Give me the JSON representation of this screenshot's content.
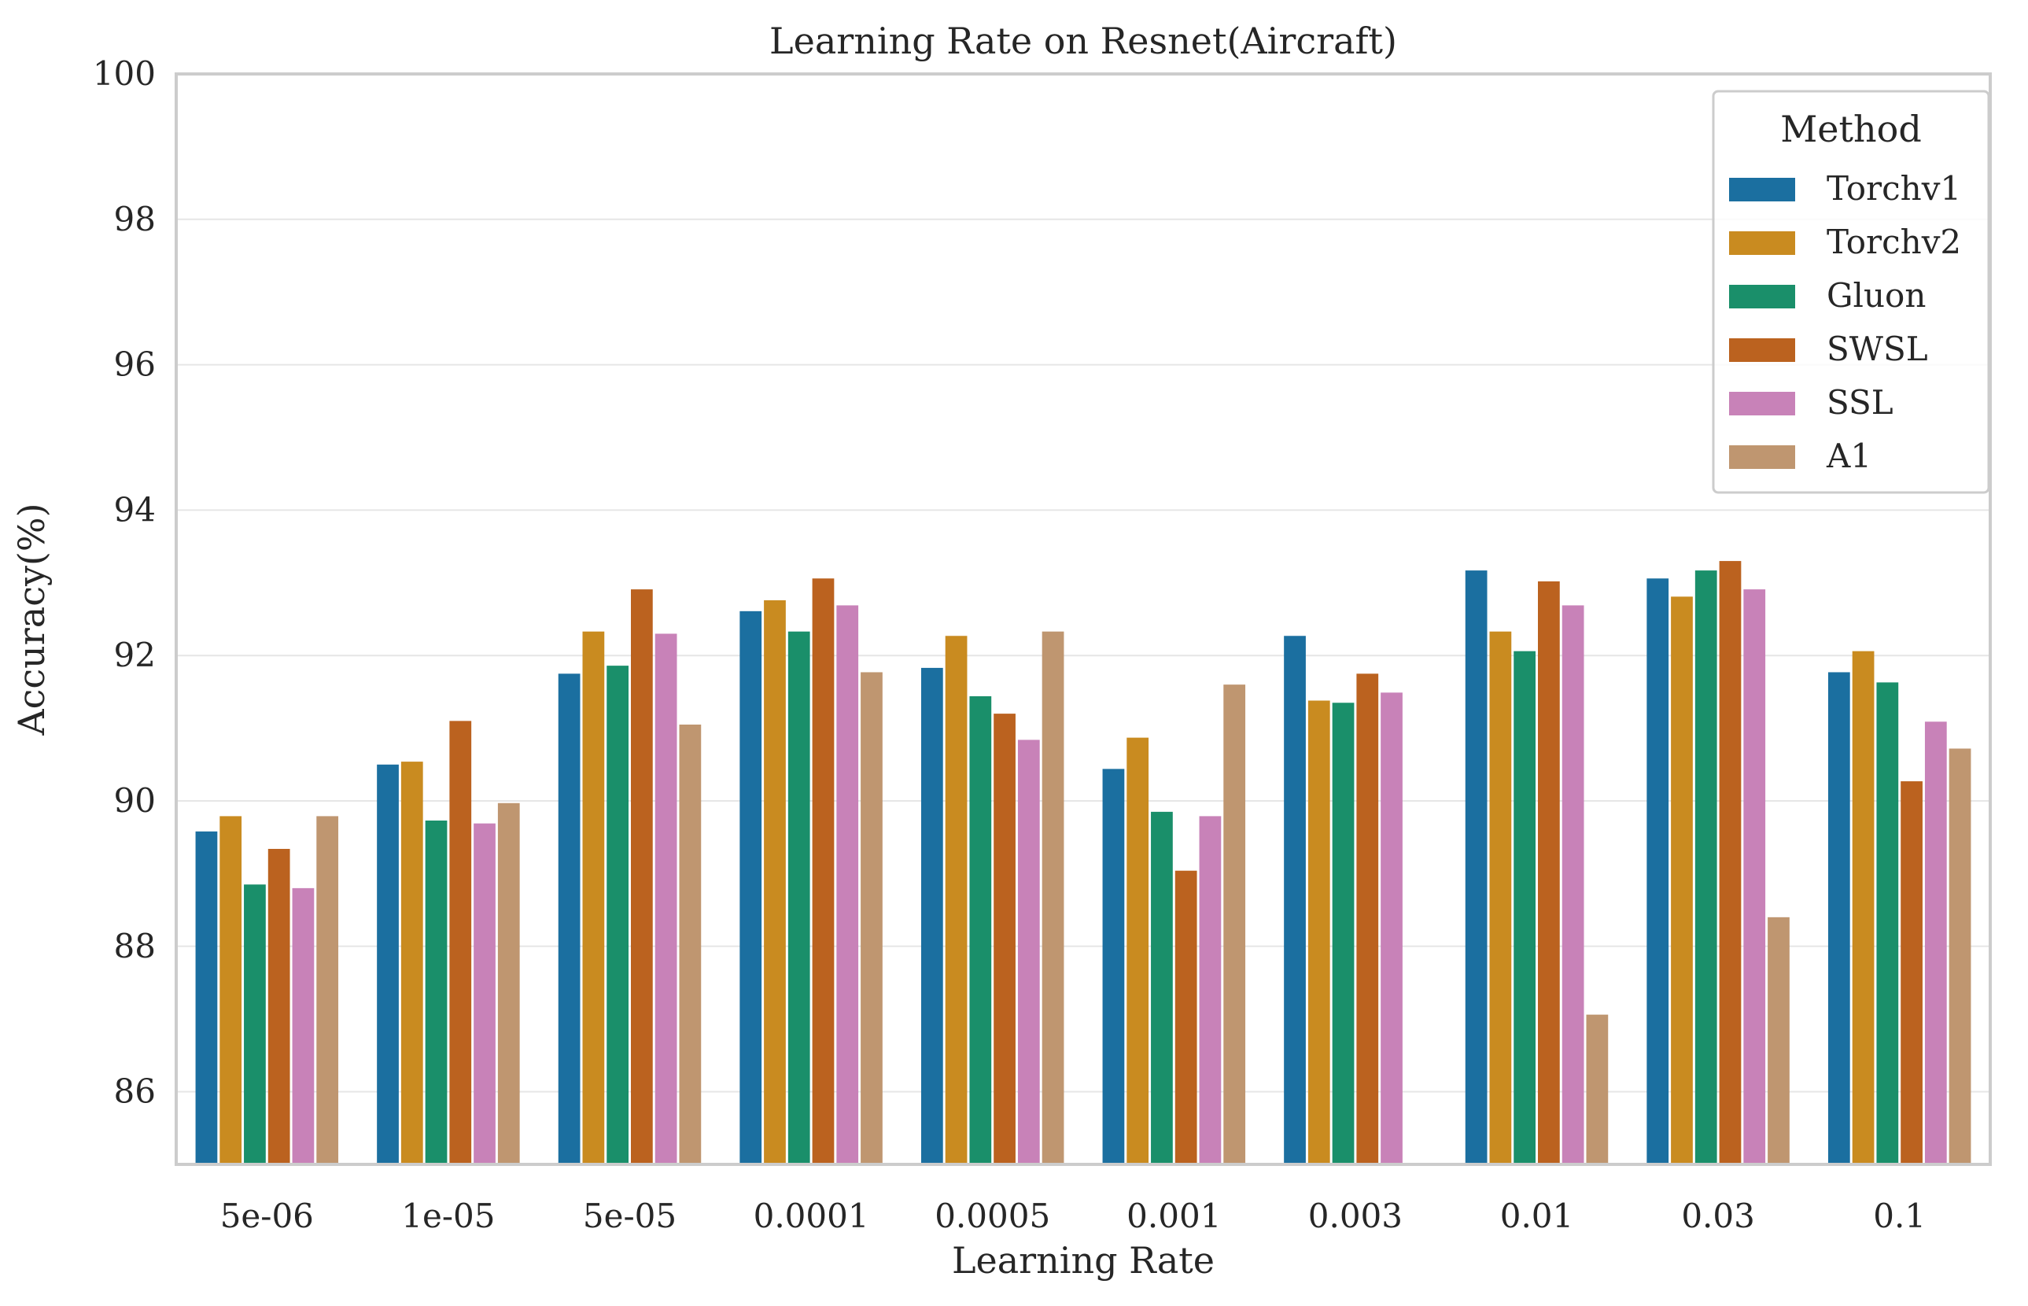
{
  "chart_data": {
    "type": "bar",
    "title": "Learning Rate on Resnet(Aircraft)",
    "xlabel": "Learning Rate",
    "ylabel": "Accuracy(%)",
    "ylim": [
      85,
      100
    ],
    "yticks": [
      86,
      88,
      90,
      92,
      94,
      96,
      98,
      100
    ],
    "grid": "horizontal",
    "legend": {
      "title": "Method",
      "placement": "top-right"
    },
    "categories": [
      "5e-06",
      "1e-05",
      "5e-05",
      "0.0001",
      "0.0005",
      "0.001",
      "0.003",
      "0.01",
      "0.03",
      "0.1"
    ],
    "series": [
      {
        "name": "Torchv1",
        "color": "#1b6fa0",
        "values": [
          89.58,
          90.5,
          91.75,
          92.61,
          91.83,
          90.44,
          92.27,
          93.17,
          93.06,
          91.77
        ]
      },
      {
        "name": "Torchv2",
        "color": "#c98b20",
        "values": [
          89.79,
          90.54,
          92.33,
          92.76,
          92.27,
          90.87,
          91.38,
          92.33,
          92.81,
          92.06
        ]
      },
      {
        "name": "Gluon",
        "color": "#1a8f6a",
        "values": [
          88.85,
          89.73,
          91.86,
          92.33,
          91.44,
          89.85,
          91.35,
          92.06,
          93.17,
          91.63
        ]
      },
      {
        "name": "SWSL",
        "color": "#bb621f",
        "values": [
          89.34,
          91.1,
          92.91,
          93.06,
          91.2,
          89.04,
          91.75,
          93.02,
          93.3,
          90.27
        ]
      },
      {
        "name": "SSL",
        "color": "#c882b8",
        "values": [
          88.8,
          89.69,
          92.3,
          92.69,
          90.84,
          89.79,
          91.49,
          92.69,
          92.91,
          91.09
        ]
      },
      {
        "name": "A1",
        "color": "#bf9670",
        "values": [
          89.79,
          89.97,
          91.05,
          91.77,
          92.33,
          91.6,
          null,
          87.06,
          88.4,
          90.72
        ]
      }
    ]
  }
}
